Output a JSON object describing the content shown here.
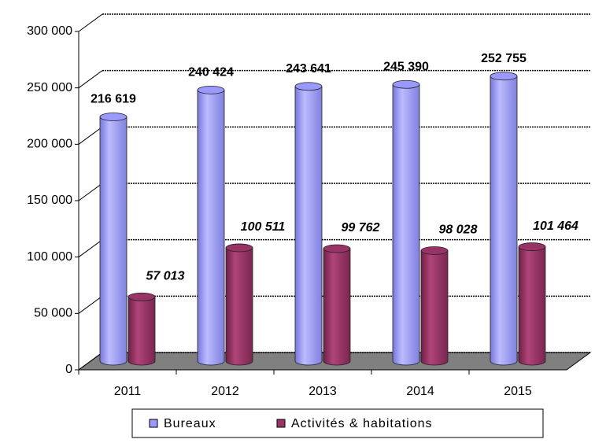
{
  "chart_data": {
    "type": "bar3d",
    "categories": [
      "2011",
      "2012",
      "2013",
      "2014",
      "2015"
    ],
    "series": [
      {
        "name": "Bureaux",
        "color": "#9999ff",
        "values": [
          216619,
          240424,
          243641,
          245390,
          252755
        ],
        "value_labels": [
          "216 619",
          "240 424",
          "243 641",
          "245 390",
          "252 755"
        ]
      },
      {
        "name": "Activités & habitations",
        "color": "#993366",
        "values": [
          57013,
          100511,
          99762,
          98028,
          101464
        ],
        "value_labels": [
          "57 013",
          "100 511",
          "99 762",
          "98 028",
          "101 464"
        ]
      }
    ],
    "ylim": [
      0,
      300000
    ],
    "yticks": [
      0,
      {
        "value": 50000,
        "label": "50 000"
      },
      {
        "value": 100000,
        "label": "100 000"
      },
      {
        "value": 150000,
        "label": "150 000"
      },
      {
        "value": 200000,
        "label": "200 000"
      },
      {
        "value": 250000,
        "label": "250 000"
      },
      {
        "value": 300000,
        "label": "300 000"
      }
    ],
    "grid": true,
    "legend": "bottom"
  }
}
